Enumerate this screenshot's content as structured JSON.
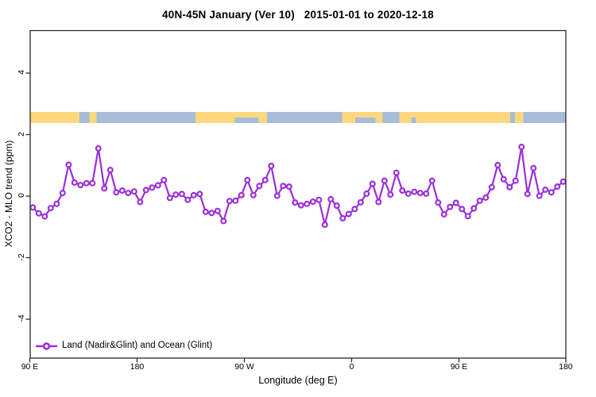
{
  "title": "40N-45N January (Ver 10)   2015-01-01 to 2020-12-18",
  "chart_data": {
    "type": "line",
    "title": "40N-45N January (Ver 10)   2015-01-01 to 2020-12-18",
    "xlabel": "Longitude (deg E)",
    "ylabel": "XCO2 - MLO trend (ppm)",
    "marker": "open-circle",
    "grid": "off",
    "legend_position": "bottom-left-inside",
    "xlim_deg": [
      90,
      540
    ],
    "ylim": [
      -5.3,
      5.4
    ],
    "x_ticks": [
      {
        "lon": 90,
        "label": "90 E"
      },
      {
        "lon": 180,
        "label": "180"
      },
      {
        "lon": 270,
        "label": "90 W"
      },
      {
        "lon": 360,
        "label": "0"
      },
      {
        "lon": 450,
        "label": "90 E"
      },
      {
        "lon": 540,
        "label": "180"
      }
    ],
    "y_ticks": [
      {
        "value": 4,
        "label": "4"
      },
      {
        "value": 2,
        "label": "2"
      },
      {
        "value": 0,
        "label": "0"
      },
      {
        "value": -2,
        "label": "-2"
      },
      {
        "value": -4,
        "label": "-4"
      }
    ],
    "series": [
      {
        "name": "Land (Nadir&Glint) and Ocean (Glint)",
        "color": "#9B2FD9",
        "x": [
          92.5,
          97.5,
          102.5,
          107.5,
          112.5,
          117.5,
          122.5,
          127.5,
          132.5,
          137.5,
          142.5,
          147.5,
          152.5,
          157.5,
          162.5,
          167.5,
          172.5,
          177.5,
          182.5,
          187.5,
          192.5,
          197.5,
          202.5,
          207.5,
          212.5,
          217.5,
          222.5,
          227.5,
          232.5,
          237.5,
          242.5,
          247.5,
          252.5,
          257.5,
          262.5,
          267.5,
          272.5,
          277.5,
          282.5,
          287.5,
          292.5,
          297.5,
          302.5,
          307.5,
          312.5,
          317.5,
          322.5,
          327.5,
          332.5,
          337.5,
          342.5,
          347.5,
          352.5,
          357.5,
          362.5,
          367.5,
          372.5,
          377.5,
          382.5,
          387.5,
          392.5,
          397.5,
          402.5,
          407.5,
          412.5,
          417.5,
          422.5,
          427.5,
          432.5,
          437.5,
          442.5,
          447.5,
          452.5,
          457.5,
          462.5,
          467.5,
          472.5,
          477.5,
          482.5,
          487.5,
          492.5,
          497.5,
          502.5,
          507.5,
          512.5,
          517.5,
          522.5,
          527.5,
          532.5,
          537.5
        ],
        "y": [
          -0.37,
          -0.56,
          -0.66,
          -0.39,
          -0.25,
          0.1,
          1.02,
          0.44,
          0.36,
          0.42,
          0.42,
          1.55,
          0.25,
          0.85,
          0.12,
          0.18,
          0.1,
          0.15,
          -0.19,
          0.2,
          0.28,
          0.35,
          0.52,
          -0.06,
          0.05,
          0.07,
          -0.12,
          0.03,
          0.07,
          -0.51,
          -0.55,
          -0.48,
          -0.81,
          -0.16,
          -0.15,
          0.03,
          0.52,
          0.03,
          0.33,
          0.52,
          0.98,
          0.01,
          0.33,
          0.31,
          -0.21,
          -0.3,
          -0.25,
          -0.18,
          -0.12,
          -0.93,
          -0.1,
          -0.31,
          -0.72,
          -0.58,
          -0.42,
          -0.2,
          0.08,
          0.4,
          -0.19,
          0.5,
          0.05,
          0.76,
          0.18,
          0.08,
          0.14,
          0.1,
          0.08,
          0.5,
          -0.21,
          -0.59,
          -0.35,
          -0.22,
          -0.42,
          -0.65,
          -0.4,
          -0.15,
          -0.05,
          0.29,
          1.01,
          0.55,
          0.29,
          0.5,
          1.6,
          0.07,
          0.91,
          0.01,
          0.21,
          0.12,
          0.31,
          0.47
        ]
      }
    ],
    "land_ocean_band": {
      "description": "land/ocean strip for 40N-45N plotted at about y = 2.4 to 2.75 ppm",
      "y_range_ppm": [
        2.38,
        2.74
      ],
      "land_color": "#FBD87D",
      "ocean_color": "#A7BDD9",
      "segments": [
        {
          "start": 90,
          "end": 131.5,
          "type": "land",
          "row": "full"
        },
        {
          "start": 131.5,
          "end": 140,
          "type": "ocean",
          "row": "full"
        },
        {
          "start": 140,
          "end": 146,
          "type": "land",
          "row": "full"
        },
        {
          "start": 146,
          "end": 229,
          "type": "ocean",
          "row": "full"
        },
        {
          "start": 229,
          "end": 262,
          "type": "land",
          "row": "full"
        },
        {
          "start": 262,
          "end": 282,
          "type": "land",
          "row": "top"
        },
        {
          "start": 262,
          "end": 282,
          "type": "ocean",
          "row": "bottom"
        },
        {
          "start": 282,
          "end": 289,
          "type": "land",
          "row": "full"
        },
        {
          "start": 289,
          "end": 352,
          "type": "ocean",
          "row": "full"
        },
        {
          "start": 352,
          "end": 363,
          "type": "land",
          "row": "full"
        },
        {
          "start": 363,
          "end": 380,
          "type": "land",
          "row": "top"
        },
        {
          "start": 363,
          "end": 380,
          "type": "ocean",
          "row": "bottom"
        },
        {
          "start": 380,
          "end": 386,
          "type": "land",
          "row": "full"
        },
        {
          "start": 386,
          "end": 400,
          "type": "ocean",
          "row": "full"
        },
        {
          "start": 400,
          "end": 410,
          "type": "land",
          "row": "full"
        },
        {
          "start": 410,
          "end": 414,
          "type": "land",
          "row": "top"
        },
        {
          "start": 410,
          "end": 414,
          "type": "ocean",
          "row": "bottom"
        },
        {
          "start": 414,
          "end": 493,
          "type": "land",
          "row": "full"
        },
        {
          "start": 493,
          "end": 497,
          "type": "ocean",
          "row": "full"
        },
        {
          "start": 497,
          "end": 504,
          "type": "land",
          "row": "full"
        },
        {
          "start": 504,
          "end": 540,
          "type": "ocean",
          "row": "full"
        }
      ]
    },
    "legend": {
      "entries": [
        {
          "label": "Land (Nadir&Glint) and Ocean (Glint)",
          "color": "#9B2FD9",
          "marker": "open-circle"
        }
      ]
    }
  }
}
